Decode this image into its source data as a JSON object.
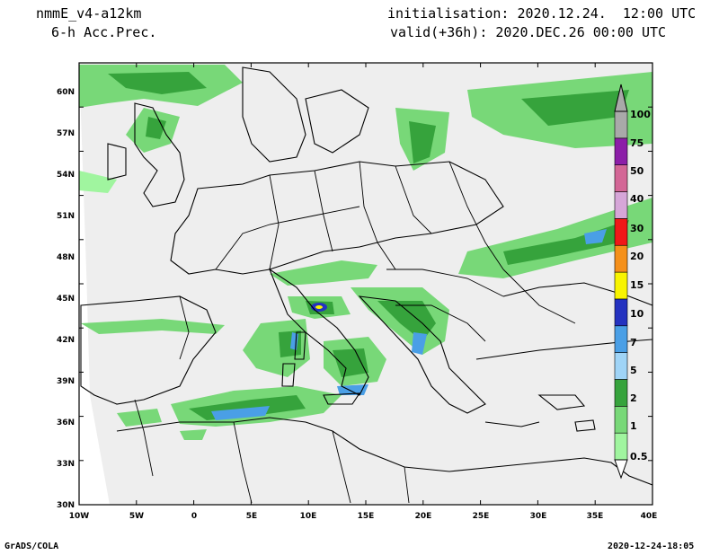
{
  "header": {
    "model": "nmmE_v4-a12km",
    "field": "6-h Acc.Prec.",
    "initialisation": "initialisation: 2020.12.24.  12:00 UTC",
    "valid": "valid(+36h): 2020.DEC.26 00:00 UTC"
  },
  "footer": {
    "left": "GrADS/COLA",
    "right": "2020-12-24-18:05"
  },
  "axes": {
    "lat_labels": [
      "30N",
      "33N",
      "36N",
      "39N",
      "42N",
      "45N",
      "48N",
      "51N",
      "54N",
      "57N",
      "60N"
    ],
    "lon_labels": [
      "10W",
      "5W",
      "0",
      "5E",
      "10E",
      "15E",
      "20E",
      "25E",
      "30E",
      "35E",
      "40E"
    ]
  },
  "legend": {
    "levels": [
      {
        "label": "0.5",
        "color": "#a0f59f"
      },
      {
        "label": "1",
        "color": "#78d878"
      },
      {
        "label": "2",
        "color": "#36a33c"
      },
      {
        "label": "5",
        "color": "#9fd4f7"
      },
      {
        "label": "7",
        "color": "#4a9fe6"
      },
      {
        "label": "10",
        "color": "#2432c0"
      },
      {
        "label": "15",
        "color": "#f8f400"
      },
      {
        "label": "20",
        "color": "#f5901a"
      },
      {
        "label": "30",
        "color": "#f01818"
      },
      {
        "label": "40",
        "color": "#d6a6d8"
      },
      {
        "label": "50",
        "color": "#d36696"
      },
      {
        "label": "75",
        "color": "#8c1ea8"
      },
      {
        "label": "100",
        "color": "#a9a9a9"
      }
    ]
  },
  "colors": {
    "land_background": "#eeeeee",
    "coast_lines": "#000000",
    "precip_light": "#a0f59f",
    "precip_mid": "#78d878",
    "precip_heavy": "#36a33c"
  }
}
